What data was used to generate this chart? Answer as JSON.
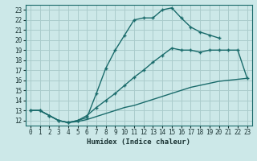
{
  "xlabel": "Humidex (Indice chaleur)",
  "xlim": [
    -0.5,
    23.5
  ],
  "ylim": [
    11.5,
    23.5
  ],
  "xticks": [
    0,
    1,
    2,
    3,
    4,
    5,
    6,
    7,
    8,
    9,
    10,
    11,
    12,
    13,
    14,
    15,
    16,
    17,
    18,
    19,
    20,
    21,
    22,
    23
  ],
  "yticks": [
    12,
    13,
    14,
    15,
    16,
    17,
    18,
    19,
    20,
    21,
    22,
    23
  ],
  "background_color": "#cce8e8",
  "grid_color": "#aacccc",
  "line_color": "#1a6b6b",
  "curve1_x": [
    0,
    1,
    2,
    3,
    4,
    5,
    6,
    7,
    8,
    9,
    10,
    11,
    12,
    13,
    14,
    15,
    16,
    17,
    18,
    19,
    20
  ],
  "curve1_y": [
    13,
    13,
    12.5,
    12,
    11.8,
    12.0,
    12.3,
    14.7,
    17.2,
    19.0,
    20.5,
    22.0,
    22.2,
    22.2,
    23.0,
    23.2,
    22.2,
    21.3,
    20.8,
    20.5,
    20.2
  ],
  "curve2_x": [
    0,
    1,
    2,
    3,
    4,
    5,
    6,
    7,
    8,
    9,
    10,
    11,
    12,
    13,
    14,
    15,
    16,
    17,
    18,
    19,
    20,
    21,
    22,
    23
  ],
  "curve2_y": [
    13,
    13,
    12.5,
    12,
    11.8,
    12.0,
    12.5,
    13.3,
    14.0,
    14.7,
    15.5,
    16.3,
    17.0,
    17.8,
    18.5,
    19.2,
    19.0,
    19.0,
    18.8,
    19.0,
    19.0,
    19.0,
    19.0,
    16.2
  ],
  "curve3_x": [
    0,
    1,
    2,
    3,
    4,
    5,
    6,
    7,
    8,
    9,
    10,
    11,
    12,
    13,
    14,
    15,
    16,
    17,
    18,
    19,
    20,
    21,
    22,
    23
  ],
  "curve3_y": [
    13,
    13,
    12.5,
    12,
    11.8,
    11.9,
    12.1,
    12.4,
    12.7,
    13.0,
    13.3,
    13.5,
    13.8,
    14.1,
    14.4,
    14.7,
    15.0,
    15.3,
    15.5,
    15.7,
    15.9,
    16.0,
    16.1,
    16.2
  ]
}
